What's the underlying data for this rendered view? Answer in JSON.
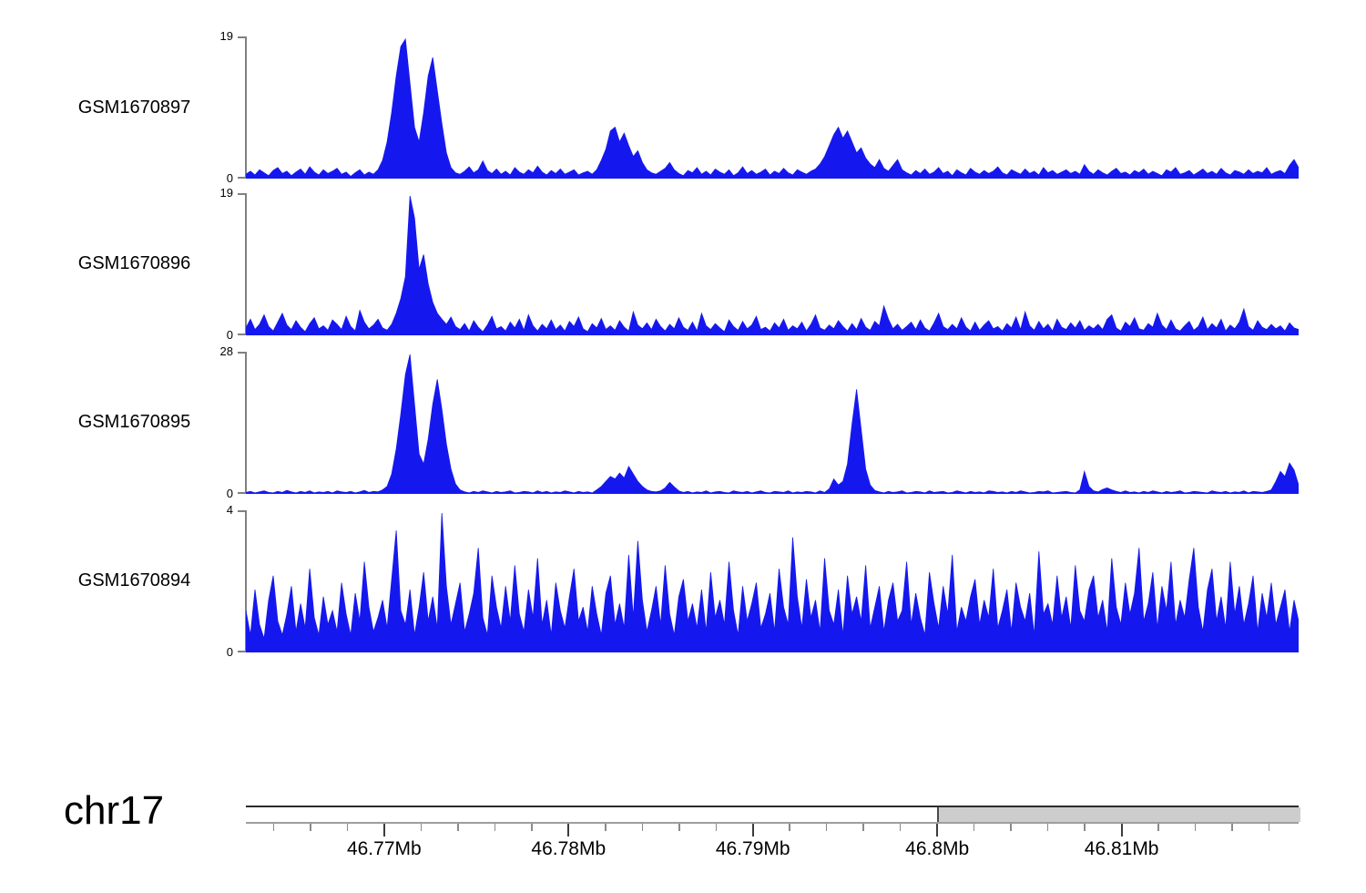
{
  "page": {
    "background": "#ffffff"
  },
  "chart_data": {
    "type": "area",
    "title": "",
    "chromosome": "chr17",
    "signal_color": "#1518ee",
    "axis_color": "#808080",
    "tracks": [
      {
        "id": "GSM1670897",
        "ymax": 19,
        "ymax_label": "19",
        "zero_label": "0",
        "samples": [
          0.6,
          1.0,
          0.5,
          1.2,
          0.8,
          0.4,
          1.1,
          1.5,
          0.7,
          1.0,
          0.4,
          0.9,
          1.3,
          0.6,
          1.6,
          0.9,
          0.5,
          1.2,
          0.7,
          1.0,
          1.4,
          0.6,
          0.9,
          0.3,
          0.8,
          1.2,
          0.5,
          0.9,
          0.6,
          1.2,
          2.5,
          5,
          9,
          14,
          18,
          19,
          13,
          7,
          5,
          9,
          14,
          16.5,
          12,
          7.5,
          3.5,
          1.5,
          0.8,
          0.6,
          1.0,
          1.6,
          0.8,
          1.2,
          2.4,
          1.1,
          0.7,
          1.3,
          0.6,
          1.0,
          0.5,
          1.5,
          0.9,
          0.6,
          1.2,
          0.8,
          1.7,
          0.9,
          0.5,
          1.1,
          0.7,
          1.3,
          0.6,
          0.9,
          1.2,
          0.5,
          0.8,
          1.0,
          0.6,
          1.2,
          2.5,
          4,
          6.5,
          7,
          5,
          6.2,
          4.5,
          3,
          3.8,
          2.2,
          1.2,
          0.8,
          0.6,
          1.0,
          1.4,
          2.2,
          1.2,
          0.7,
          0.4,
          1.1,
          0.8,
          1.5,
          0.6,
          1.0,
          0.5,
          1.3,
          0.9,
          0.6,
          1.2,
          0.4,
          0.8,
          1.6,
          0.7,
          1.1,
          0.6,
          0.9,
          1.3,
          0.5,
          1.0,
          0.7,
          1.4,
          0.8,
          0.5,
          1.2,
          0.9,
          0.6,
          1.0,
          1.3,
          2,
          3,
          4.5,
          6,
          7,
          5.5,
          6.5,
          5,
          3.5,
          4.2,
          2.8,
          2,
          1.5,
          2.6,
          1.4,
          1.0,
          1.8,
          2.6,
          1.2,
          0.8,
          0.5,
          1.1,
          0.7,
          1.3,
          0.6,
          0.9,
          1.5,
          0.7,
          1.0,
          0.4,
          1.2,
          0.8,
          0.5,
          1.4,
          0.9,
          0.6,
          1.1,
          0.7,
          1.0,
          1.6,
          0.8,
          0.5,
          1.2,
          0.9,
          0.6,
          1.3,
          0.7,
          1.0,
          0.5,
          1.5,
          0.8,
          1.1,
          0.6,
          0.9,
          1.2,
          0.7,
          1.0,
          0.6,
          1.9,
          1.0,
          0.6,
          1.2,
          0.8,
          0.5,
          1.0,
          1.4,
          0.7,
          0.9,
          0.5,
          1.1,
          0.8,
          1.3,
          0.6,
          1.0,
          0.7,
          0.4,
          1.2,
          0.9,
          1.5,
          0.6,
          0.8,
          1.1,
          0.5,
          0.9,
          1.3,
          0.7,
          1.0,
          0.6,
          1.4,
          0.8,
          0.5,
          1.1,
          0.9,
          0.6,
          1.2,
          0.7,
          1.0,
          0.8,
          1.5,
          0.6,
          0.9,
          1.1,
          0.7,
          1.8,
          2.6,
          1.5
        ]
      },
      {
        "id": "GSM1670896",
        "ymax": 19,
        "ymax_label": "19",
        "zero_label": "0",
        "samples": [
          1.0,
          2.2,
          0.8,
          1.5,
          2.8,
          1.2,
          0.6,
          1.8,
          3.0,
          1.4,
          0.8,
          2.0,
          1.1,
          0.5,
          1.6,
          2.4,
          0.9,
          1.3,
          0.7,
          2.1,
          1.5,
          0.8,
          2.6,
          1.2,
          0.6,
          3.4,
          1.8,
          0.9,
          1.4,
          2.2,
          1.0,
          0.7,
          1.5,
          3,
          5,
          8,
          19,
          16,
          9,
          11,
          7,
          4.5,
          3,
          2.2,
          1.5,
          2.5,
          1.2,
          0.8,
          1.6,
          0.6,
          2.0,
          1.1,
          0.5,
          1.4,
          2.6,
          0.9,
          1.2,
          0.6,
          1.8,
          1.0,
          2.2,
          0.7,
          2.8,
          1.3,
          0.6,
          1.5,
          0.9,
          2.1,
          0.8,
          1.4,
          0.6,
          1.9,
          1.2,
          2.5,
          0.9,
          0.5,
          1.6,
          1.0,
          2.3,
          0.8,
          1.3,
          0.7,
          2.0,
          1.1,
          0.6,
          3.2,
          1.4,
          0.9,
          1.7,
          0.8,
          2.2,
          1.2,
          0.6,
          1.5,
          0.9,
          2.4,
          1.1,
          0.7,
          1.8,
          0.6,
          3.0,
          1.3,
          0.8,
          1.6,
          1.0,
          0.5,
          2.1,
          1.2,
          0.7,
          1.9,
          0.9,
          1.4,
          2.6,
          0.8,
          1.1,
          0.6,
          1.7,
          1.0,
          2.2,
          0.7,
          1.3,
          0.9,
          1.8,
          0.6,
          1.5,
          2.8,
          1.0,
          0.7,
          1.4,
          0.9,
          2.0,
          1.2,
          0.6,
          1.6,
          0.8,
          2.3,
          1.1,
          0.7,
          1.9,
          1.3,
          4.0,
          2.2,
          0.9,
          1.5,
          0.7,
          1.2,
          1.8,
          0.8,
          2.1,
          1.0,
          0.6,
          1.7,
          3.0,
          1.2,
          0.8,
          1.5,
          0.9,
          2.4,
          1.1,
          0.6,
          1.8,
          0.7,
          1.4,
          2.0,
          0.9,
          1.2,
          0.6,
          1.6,
          1.0,
          2.5,
          0.8,
          3.2,
          1.3,
          0.7,
          1.9,
          0.9,
          1.5,
          0.6,
          2.2,
          1.1,
          0.8,
          1.7,
          1.0,
          2.0,
          0.7,
          1.3,
          0.9,
          1.5,
          0.8,
          2.2,
          2.8,
          1.0,
          0.6,
          1.8,
          1.2,
          2.4,
          0.9,
          0.7,
          1.6,
          1.1,
          3.0,
          1.4,
          0.8,
          2.1,
          0.9,
          0.6,
          1.3,
          1.9,
          0.7,
          1.2,
          2.5,
          0.8,
          1.6,
          1.0,
          2.2,
          0.6,
          1.4,
          0.9,
          1.8,
          3.6,
          1.2,
          0.7,
          2.0,
          1.1,
          0.8,
          1.5,
          0.9,
          1.3,
          0.6,
          1.7,
          1.0,
          0.8
        ]
      },
      {
        "id": "GSM1670895",
        "ymax": 28,
        "ymax_label": "28",
        "zero_label": "0",
        "samples": [
          0.3,
          0.5,
          0.2,
          0.4,
          0.6,
          0.3,
          0.2,
          0.5,
          0.3,
          0.7,
          0.4,
          0.2,
          0.5,
          0.3,
          0.6,
          0.2,
          0.4,
          0.3,
          0.5,
          0.2,
          0.6,
          0.4,
          0.3,
          0.5,
          0.2,
          0.4,
          0.7,
          0.3,
          0.5,
          0.4,
          0.8,
          1.5,
          4,
          9,
          16,
          24,
          28,
          18,
          8,
          6,
          11,
          18,
          23,
          17,
          10,
          5,
          2,
          0.8,
          0.4,
          0.2,
          0.5,
          0.3,
          0.6,
          0.4,
          0.2,
          0.5,
          0.3,
          0.4,
          0.6,
          0.2,
          0.3,
          0.5,
          0.4,
          0.2,
          0.6,
          0.3,
          0.5,
          0.2,
          0.4,
          0.3,
          0.6,
          0.4,
          0.2,
          0.5,
          0.3,
          0.4,
          0.2,
          0.8,
          1.5,
          2.5,
          3.5,
          3,
          4.2,
          3.2,
          5.5,
          4,
          2.5,
          1.5,
          0.8,
          0.5,
          0.4,
          0.6,
          1.2,
          2.3,
          1.4,
          0.6,
          0.3,
          0.5,
          0.2,
          0.4,
          0.3,
          0.6,
          0.2,
          0.4,
          0.5,
          0.3,
          0.2,
          0.6,
          0.4,
          0.3,
          0.5,
          0.2,
          0.4,
          0.6,
          0.3,
          0.2,
          0.5,
          0.4,
          0.3,
          0.6,
          0.2,
          0.4,
          0.3,
          0.5,
          0.4,
          0.2,
          0.6,
          0.3,
          1.0,
          3.0,
          1.8,
          2.5,
          6,
          14,
          21,
          13,
          5,
          1.8,
          0.7,
          0.4,
          0.2,
          0.5,
          0.3,
          0.4,
          0.6,
          0.2,
          0.3,
          0.5,
          0.4,
          0.2,
          0.6,
          0.3,
          0.4,
          0.5,
          0.2,
          0.3,
          0.6,
          0.4,
          0.2,
          0.5,
          0.3,
          0.4,
          0.2,
          0.6,
          0.5,
          0.3,
          0.4,
          0.2,
          0.5,
          0.3,
          0.6,
          0.4,
          0.2,
          0.3,
          0.5,
          0.4,
          0.6,
          0.2,
          0.3,
          0.4,
          0.5,
          0.3,
          0.2,
          0.8,
          4.5,
          1.5,
          0.6,
          0.4,
          0.9,
          1.2,
          0.8,
          0.5,
          0.3,
          0.6,
          0.3,
          0.4,
          0.2,
          0.5,
          0.3,
          0.6,
          0.4,
          0.2,
          0.5,
          0.3,
          0.4,
          0.6,
          0.2,
          0.3,
          0.5,
          0.4,
          0.3,
          0.2,
          0.6,
          0.4,
          0.3,
          0.5,
          0.2,
          0.4,
          0.3,
          0.6,
          0.2,
          0.5,
          0.4,
          0.3,
          0.5,
          0.8,
          2.5,
          4.5,
          3.5,
          6.2,
          4.8,
          1.8
        ]
      },
      {
        "id": "GSM1670894",
        "ymax": 4,
        "ymax_label": "4",
        "zero_label": "0",
        "samples": [
          1.2,
          0.5,
          1.8,
          0.8,
          0.4,
          1.5,
          2.2,
          0.9,
          0.5,
          1.1,
          1.9,
          0.6,
          1.4,
          0.7,
          2.4,
          1.0,
          0.5,
          1.6,
          0.8,
          1.2,
          0.6,
          2.0,
          1.1,
          0.5,
          1.7,
          0.9,
          2.6,
          1.3,
          0.6,
          1.0,
          1.5,
          0.7,
          2.1,
          3.5,
          1.2,
          0.8,
          1.8,
          0.5,
          1.3,
          2.3,
          0.9,
          1.6,
          0.7,
          4.0,
          1.9,
          0.8,
          1.4,
          2.0,
          0.6,
          1.1,
          1.7,
          3.0,
          1.0,
          0.5,
          2.2,
          1.3,
          0.7,
          1.9,
          0.9,
          2.5,
          1.1,
          0.6,
          1.8,
          1.0,
          2.7,
          0.8,
          1.5,
          0.5,
          2.0,
          1.2,
          0.7,
          1.6,
          2.4,
          0.9,
          1.3,
          0.6,
          1.9,
          1.1,
          0.5,
          1.7,
          2.2,
          0.8,
          1.4,
          0.7,
          2.8,
          1.0,
          3.2,
          1.5,
          0.6,
          1.2,
          1.9,
          0.8,
          2.5,
          1.1,
          0.5,
          1.6,
          2.1,
          0.9,
          1.4,
          0.7,
          1.8,
          0.6,
          2.3,
          1.0,
          1.5,
          0.8,
          2.6,
          1.2,
          0.5,
          1.9,
          0.9,
          1.4,
          2.0,
          0.7,
          1.1,
          1.7,
          0.6,
          2.4,
          1.3,
          0.8,
          3.3,
          1.6,
          0.7,
          2.1,
          1.0,
          1.5,
          0.6,
          2.7,
          1.2,
          0.8,
          1.8,
          0.5,
          2.2,
          1.1,
          1.6,
          0.9,
          2.5,
          0.7,
          1.3,
          1.9,
          0.6,
          1.5,
          2.0,
          0.9,
          1.2,
          2.6,
          0.8,
          1.7,
          1.0,
          0.5,
          2.3,
          1.4,
          0.7,
          1.9,
          1.1,
          2.8,
          0.6,
          1.3,
          0.9,
          1.6,
          2.1,
          0.8,
          1.5,
          1.0,
          2.4,
          0.7,
          1.2,
          1.8,
          0.6,
          2.0,
          1.3,
          0.9,
          1.7,
          0.5,
          2.9,
          1.1,
          1.4,
          0.8,
          2.2,
          1.0,
          1.6,
          0.7,
          2.5,
          1.2,
          0.9,
          1.8,
          2.2,
          1.0,
          1.5,
          0.6,
          2.7,
          1.3,
          0.8,
          2.0,
          1.1,
          1.7,
          3.0,
          0.9,
          1.4,
          2.3,
          0.7,
          1.9,
          1.2,
          2.6,
          0.8,
          1.5,
          1.0,
          2.1,
          3.0,
          1.3,
          0.6,
          1.8,
          2.4,
          0.9,
          1.6,
          0.7,
          2.6,
          1.1,
          1.9,
          0.8,
          1.4,
          2.2,
          0.6,
          1.7,
          1.0,
          2.0,
          0.8,
          1.3,
          1.8,
          0.6,
          1.5,
          0.9
        ]
      }
    ],
    "genome_axis": {
      "units": "Mb",
      "start_mb": 46.7625,
      "end_mb": 46.8196,
      "bar_fill": "#ffffff",
      "bar_border": "#2b2b2b",
      "minor_tick_color": "#8a8a8a",
      "major_tick_color": "#3c3c3c",
      "major_ticks": [
        {
          "value": 46.77,
          "label": "46.77Mb"
        },
        {
          "value": 46.78,
          "label": "46.78Mb"
        },
        {
          "value": 46.79,
          "label": "46.79Mb"
        },
        {
          "value": 46.8,
          "label": "46.8Mb"
        },
        {
          "value": 46.81,
          "label": "46.81Mb"
        }
      ],
      "minor_tick_values": [
        46.764,
        46.766,
        46.768,
        46.77,
        46.772,
        46.774,
        46.776,
        46.778,
        46.78,
        46.782,
        46.784,
        46.786,
        46.788,
        46.79,
        46.792,
        46.794,
        46.796,
        46.798,
        46.8,
        46.802,
        46.804,
        46.806,
        46.808,
        46.81,
        46.812,
        46.814,
        46.816,
        46.818
      ],
      "highlight_region": {
        "start_mb": 46.8,
        "end_mb": 46.8196,
        "fill": "#cdcdcd"
      }
    }
  }
}
